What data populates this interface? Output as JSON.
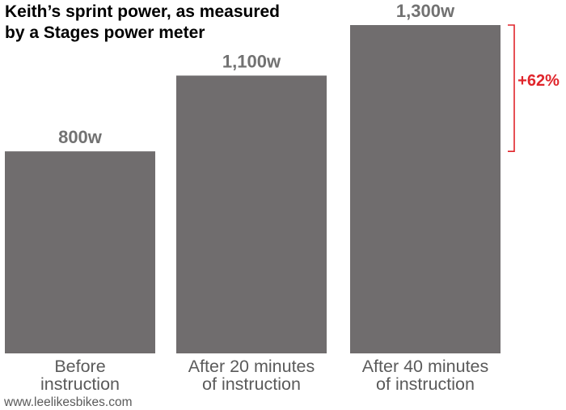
{
  "chart_data": {
    "type": "bar",
    "title": "Keith’s sprint power, as measured by a Stages power meter",
    "title_lines": [
      "Keith’s sprint power, as measured",
      "by a Stages power meter"
    ],
    "categories": [
      "Before instruction",
      "After 20 minutes of instruction",
      "After 40 minutes of instruction"
    ],
    "category_lines": [
      [
        "Before",
        "instruction"
      ],
      [
        "After 20 minutes",
        "of instruction"
      ],
      [
        "After 40 minutes",
        "of instruction"
      ]
    ],
    "values": [
      800,
      1100,
      1300
    ],
    "value_labels": [
      "800w",
      "1,100w",
      "1,300w"
    ],
    "unit": "w",
    "ylim": [
      0,
      1300
    ],
    "grid": false,
    "bar_color": "#706d6e",
    "annotation": {
      "text": "+62%",
      "from_value": 800,
      "to_value": 1300,
      "color": "#e0252b"
    },
    "source": "www.leelikesbikes.com"
  }
}
